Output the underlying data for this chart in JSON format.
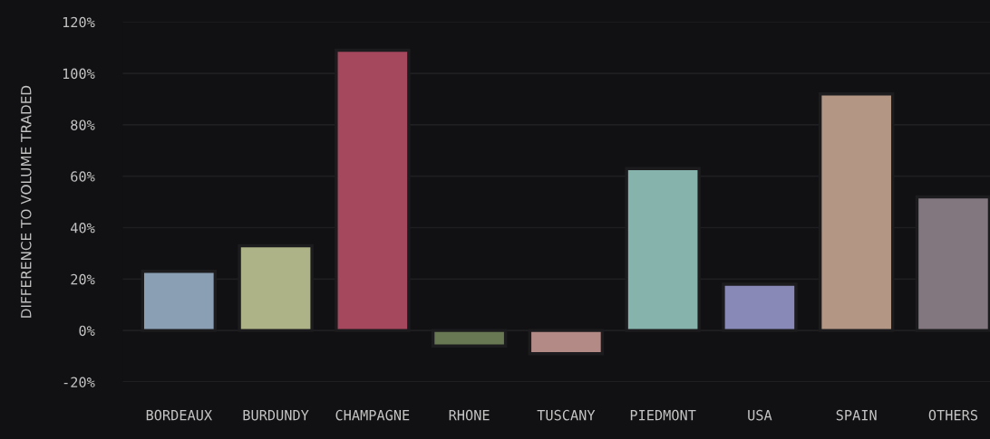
{
  "chart_data": {
    "type": "bar",
    "ylabel": "DIFFERENCE TO VOLUME TRADED",
    "categories": [
      "BORDEAUX",
      "BURDUNDY",
      "CHAMPAGNE",
      "RHONE",
      "TUSCANY",
      "PIEDMONT",
      "USA",
      "SPAIN",
      "OTHERS"
    ],
    "values": [
      23,
      33,
      109,
      -6,
      -9,
      63,
      18,
      92,
      52
    ],
    "colors": [
      "#8a9fb4",
      "#aeb387",
      "#a5475d",
      "#687853",
      "#b48a87",
      "#87b3ad",
      "#8889b6",
      "#b39784",
      "#82777f"
    ],
    "ylim": [
      -20,
      120
    ],
    "yticks": [
      {
        "value": -20,
        "label": "-20%"
      },
      {
        "value": 0,
        "label": "0%"
      },
      {
        "value": 20,
        "label": "20%"
      },
      {
        "value": 40,
        "label": "40%"
      },
      {
        "value": 60,
        "label": "60%"
      },
      {
        "value": 80,
        "label": "80%"
      },
      {
        "value": 100,
        "label": "100%"
      },
      {
        "value": 120,
        "label": "120%"
      }
    ],
    "grid": "y",
    "legend": false
  }
}
